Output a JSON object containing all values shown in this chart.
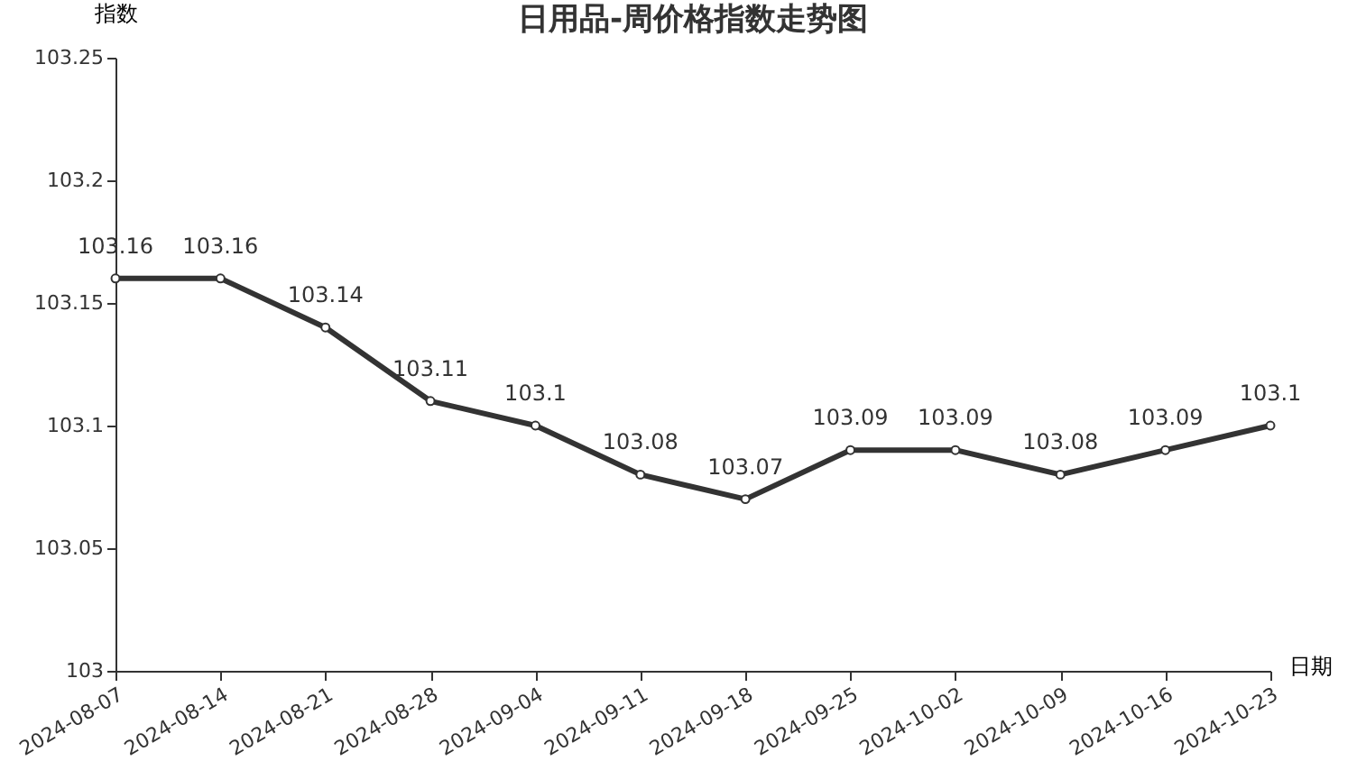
{
  "chart_data": {
    "type": "line",
    "title": "日用品-周价格指数走势图",
    "xlabel": "日期",
    "ylabel": "指数",
    "categories": [
      "2024-08-07",
      "2024-08-14",
      "2024-08-21",
      "2024-08-28",
      "2024-09-04",
      "2024-09-11",
      "2024-09-18",
      "2024-09-25",
      "2024-10-02",
      "2024-10-09",
      "2024-10-16",
      "2024-10-23"
    ],
    "series": [
      {
        "color": "#333333",
        "values": [
          103.16,
          103.16,
          103.14,
          103.11,
          103.1,
          103.08,
          103.07,
          103.09,
          103.09,
          103.08,
          103.09,
          103.1
        ]
      }
    ],
    "ylim": [
      103,
      103.25
    ],
    "yticks": [
      103,
      103.05,
      103.1,
      103.15,
      103.2,
      103.25
    ],
    "grid": false,
    "marker": "circle",
    "line_style": "solid",
    "data_labels": true
  }
}
